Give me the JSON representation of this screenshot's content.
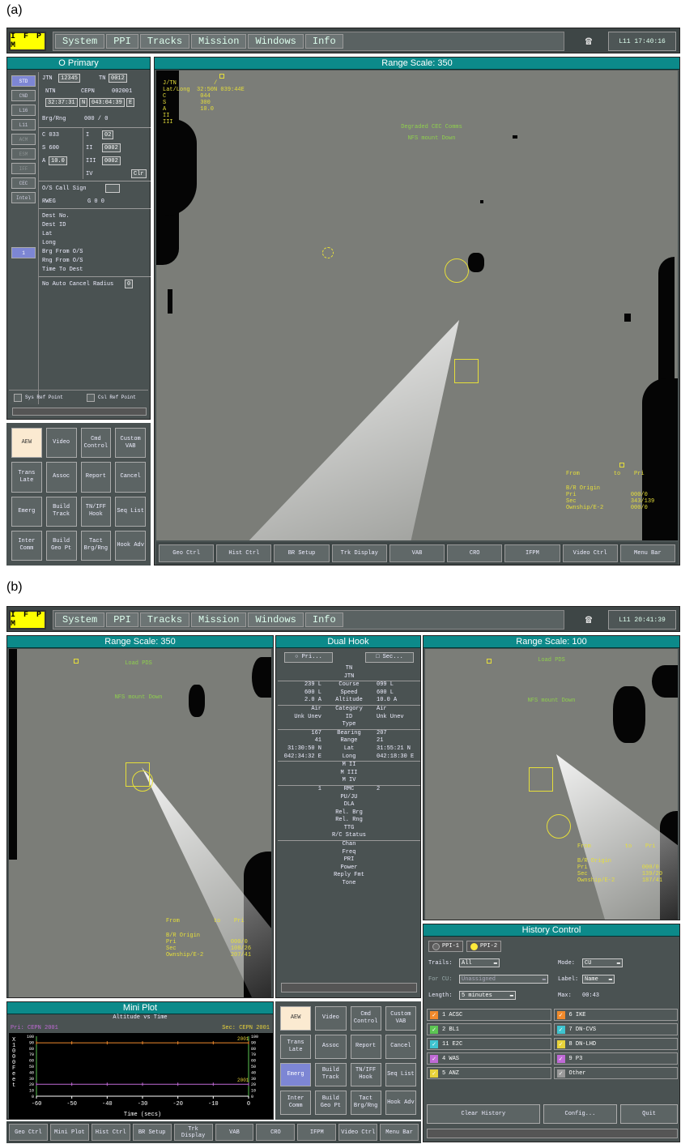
{
  "panel_a": {
    "label": "(a)",
    "menu": {
      "logo": "I F P M",
      "items": [
        "System",
        "PPI",
        "Tracks",
        "Mission",
        "Windows",
        "Info"
      ],
      "clock": "L11 17:40:16"
    },
    "primary": {
      "title": "O Primary",
      "side_buttons": [
        "STD",
        "CND",
        "L16",
        "L11",
        "ACM",
        "ESM",
        "IFF",
        "CEC",
        "Intel",
        "1"
      ],
      "jtn_label": "JTN",
      "jtn": "12345",
      "tn_label": "TN",
      "tn": "0012",
      "ntn_label": "NTN",
      "cepn_label": "CEPN",
      "cepn": "002001",
      "lat": "32:37:31",
      "lat_h": "N",
      "lon": "043:04:39",
      "lon_h": "E",
      "brg_label": "Brg/Rng",
      "brg_val": "000 /    0",
      "c_val": "C 033",
      "s_val": "S 600",
      "a_label": "A",
      "a_val": "10.0",
      "i_label": "I",
      "i_val": "02",
      "ii_label": "II",
      "ii_val": "0002",
      "iii_label": "III",
      "iii_val": "0002",
      "iv_label": "IV",
      "clr": "Clr",
      "callsign": "O/S Call Sign",
      "rweg": "RWEG",
      "g_val": "G 0    0",
      "dest": [
        "Dest No.",
        "Dest ID",
        "Lat",
        "Long",
        "Brg From O/S",
        "Rng From O/S",
        "Time To Dest"
      ],
      "auto_cancel": "No Auto Cancel Radius",
      "auto_cancel_val": "0",
      "sys_ref": "Sys Ref Point",
      "csl_ref": "Csl Ref Point"
    },
    "grid_buttons": [
      "AEW",
      "Video",
      "Cmd Control",
      "Custom VAB",
      "Trans Late",
      "Assoc",
      "Report",
      "Cancel",
      "Emerg",
      "Build Track",
      "TN/IFF Hook",
      "Seq List",
      "Inter Comm",
      "Build Geo Pt",
      "Tact Brg/Rng",
      "Hook Adv"
    ],
    "map": {
      "title": "Range Scale: 350",
      "hook_block": "J/TN           /\nLat/Long  32:50N 039:44E\nC          044\nS          300\nA          10.0\nII\nIII",
      "status1": "Degraded CEC Comms",
      "status2": "NFS mount Down",
      "from_line": "From          to    Pri",
      "br_block": "B/R Origin\nPri                000/0\nSec                343/139\nOwnship/E-2        000/0"
    },
    "bottom_buttons": [
      "Geo Ctrl",
      "Hist Ctrl",
      "BR Setup",
      "Trk Display",
      "VAB",
      "CRO",
      "IFPM",
      "Video Ctrl",
      "Menu Bar"
    ]
  },
  "panel_b": {
    "label": "(b)",
    "menu": {
      "logo": "I F P M",
      "items": [
        "System",
        "PPI",
        "Tracks",
        "Mission",
        "Windows",
        "Info"
      ],
      "clock": "L11 20:41:39"
    },
    "left_map": {
      "title": "Range Scale: 350",
      "status1": "Load PDS",
      "status2": "NFS mount Down",
      "from_line": "From          to    Pri",
      "br_block": "B/R Origin\nPri                000/0\nSec                108/26\nOwnship/E-2        207/41"
    },
    "right_map": {
      "title": "Range Scale: 100",
      "status1": "Load PDS",
      "status2": "NFS mount Down",
      "from_line": "From          to    Pri",
      "br_block": "B/R Origin\nPri                000/0\nSec                139/20\nOwnship/E-2        187/41"
    },
    "dual_hook": {
      "title": "Dual Hook",
      "pri": "Pri...",
      "sec": "Sec...",
      "sections": [
        [
          [
            "",
            "TN",
            ""
          ],
          [
            "",
            "JTN",
            ""
          ]
        ],
        [
          [
            "239 L",
            "Course",
            "099 L"
          ],
          [
            "600 L",
            "Speed",
            "600 L"
          ],
          [
            "2.0 A",
            "Altitude",
            "10.0 A"
          ]
        ],
        [
          [
            "Air",
            "Category",
            "Air"
          ],
          [
            "Unk Unev",
            "ID",
            "Unk Unev"
          ],
          [
            "",
            "Type",
            ""
          ]
        ],
        [
          [
            "167",
            "Bearing",
            "207"
          ],
          [
            "41",
            "Range",
            "21"
          ],
          [
            "31:30:50 N",
            "Lat",
            "31:55:21 N"
          ],
          [
            "042:34:32 E",
            "Long",
            "042:18:30 E"
          ]
        ],
        [
          [
            "",
            "M II",
            ""
          ],
          [
            "",
            "M III",
            ""
          ],
          [
            "",
            "M IV",
            ""
          ]
        ],
        [
          [
            "1",
            "RMC",
            "2"
          ],
          [
            "",
            "PU/JU",
            ""
          ],
          [
            "",
            "DLA",
            ""
          ],
          [
            "",
            "Rel. Brg",
            ""
          ],
          [
            "",
            "Rel. Rng",
            ""
          ],
          [
            "",
            "TTG",
            ""
          ],
          [
            "",
            "R/C Status",
            ""
          ]
        ],
        [
          [
            "",
            "Chan",
            ""
          ],
          [
            "",
            "Freq",
            ""
          ],
          [
            "",
            "PRI",
            ""
          ],
          [
            "",
            "Power",
            ""
          ],
          [
            "",
            "Reply Fmt",
            ""
          ],
          [
            "",
            "Tone",
            ""
          ]
        ]
      ]
    },
    "mini_plot": {
      "title": "Mini Plot",
      "subtitle": "Altitude vs Time",
      "pri": "Pri: CEPN 2001",
      "sec": "Sec: CEPN 2001",
      "ylabel": "X 1 0 0 0 F e e t",
      "xlabel": "Time (secs)",
      "yticks": [
        "100",
        "90",
        "80",
        "70",
        "60",
        "50",
        "40",
        "30",
        "20",
        "10",
        "0"
      ],
      "xticks": [
        "-60",
        "-50",
        "-40",
        "-30",
        "-20",
        "-10",
        "0"
      ],
      "line_tag_top": "2001",
      "line_tag_bottom": "2001",
      "chart_data": {
        "type": "line",
        "x": [
          -60,
          -50,
          -40,
          -30,
          -20,
          -10,
          0
        ],
        "series": [
          {
            "values": [
              89,
              89,
              89,
              89,
              89,
              89,
              89
            ]
          },
          {
            "values": [
              20,
              20,
              20,
              20,
              20,
              20,
              20
            ]
          }
        ],
        "ylim": [
          0,
          100
        ],
        "xlim": [
          -60,
          0
        ]
      }
    },
    "grid_buttons": [
      "AEW",
      "Video",
      "Cmd Control",
      "Custom VAB",
      "Trans Late",
      "Assoc",
      "Report",
      "Cancel",
      "Emerg",
      "Build Track",
      "TN/IFF Hook",
      "Seq List",
      "Inter Comm",
      "Build Geo Pt",
      "Tact Brg/Rng",
      "Hook Adv"
    ],
    "history": {
      "title": "History Control",
      "ppi1": "PPI-1",
      "ppi2": "PPI-2",
      "trails_label": "Trails:",
      "trails": "All",
      "mode_label": "Mode:",
      "mode": "CU",
      "forcu_label": "For CU:",
      "forcu": "Unassigned",
      "label_label": "Label:",
      "label": "Name",
      "length_label": "Length:",
      "length": "5 minutes",
      "max_label": "Max:",
      "max": "00:43",
      "items": [
        {
          "name": "1 ACSC",
          "color": "#f08a2c"
        },
        {
          "name": "6 IKE",
          "color": "#f08a2c"
        },
        {
          "name": "2 BL1",
          "color": "#5cc653"
        },
        {
          "name": "7 DN-CVS",
          "color": "#3fc4d0"
        },
        {
          "name": "11 E2C",
          "color": "#3fc4d0"
        },
        {
          "name": "8 DN-LHD",
          "color": "#e8d23a"
        },
        {
          "name": "4 WAS",
          "color": "#c06ad6"
        },
        {
          "name": "9 P3",
          "color": "#c06ad6"
        },
        {
          "name": "5 ANZ",
          "color": "#e8d23a"
        },
        {
          "name": "Other",
          "color": "#9a9a9a"
        }
      ],
      "clear": "Clear History",
      "config": "Config...",
      "quit": "Quit"
    },
    "bottom_buttons": [
      "Geo Ctrl",
      "Mini Plot",
      "Hist Ctrl",
      "BR Setup",
      "Trk Display",
      "VAB",
      "CRO",
      "IFPM",
      "Video Ctrl",
      "Menu Bar"
    ]
  }
}
